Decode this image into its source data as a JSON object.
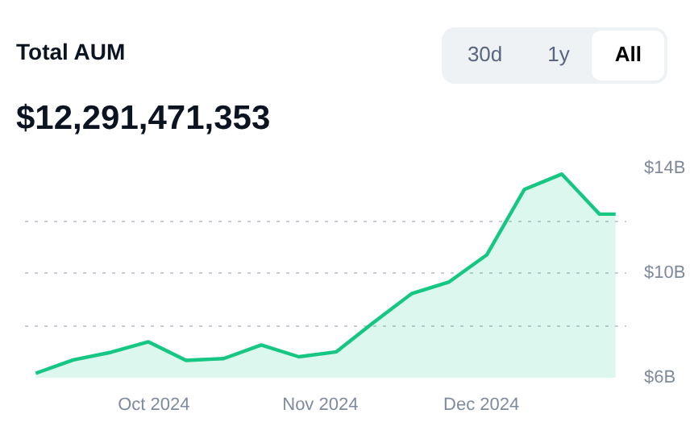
{
  "chart_data": {
    "type": "area",
    "title": "Total AUM",
    "subtitle": "$12,291,471,353",
    "annotations": [
      "30d",
      "1y",
      "All"
    ],
    "x": [
      "2024-09-09",
      "2024-09-16",
      "2024-09-23",
      "2024-09-30",
      "2024-10-07",
      "2024-10-14",
      "2024-10-21",
      "2024-10-28",
      "2024-11-04",
      "2024-11-11",
      "2024-11-18",
      "2024-11-25",
      "2024-12-02",
      "2024-12-09",
      "2024-12-16",
      "2024-12-23",
      "2024-12-26"
    ],
    "series": [
      {
        "color": "#16c784",
        "values": [
          6.17,
          6.68,
          6.97,
          7.37,
          6.66,
          6.73,
          7.25,
          6.8,
          6.99,
          8.12,
          9.21,
          9.66,
          10.69,
          13.19,
          13.78,
          12.25,
          12.25
        ]
      }
    ],
    "xlim": [
      "2024-09-07",
      "2024-12-28"
    ],
    "xticks": [
      {
        "value": "2024-10-01",
        "label": "Oct 2024"
      },
      {
        "value": "2024-11-01",
        "label": "Nov 2024"
      },
      {
        "value": "2024-12-01",
        "label": "Dec 2024"
      }
    ],
    "ylim": [
      6,
      14
    ],
    "yticks": [
      {
        "value": 6,
        "label": "$6B"
      },
      {
        "value": 8,
        "label": null
      },
      {
        "value": 10,
        "label": "$10B"
      },
      {
        "value": 12,
        "label": null
      },
      {
        "value": 14,
        "label": "$14B"
      }
    ],
    "grid": "y",
    "marker": "none",
    "line_style": "solid"
  }
}
